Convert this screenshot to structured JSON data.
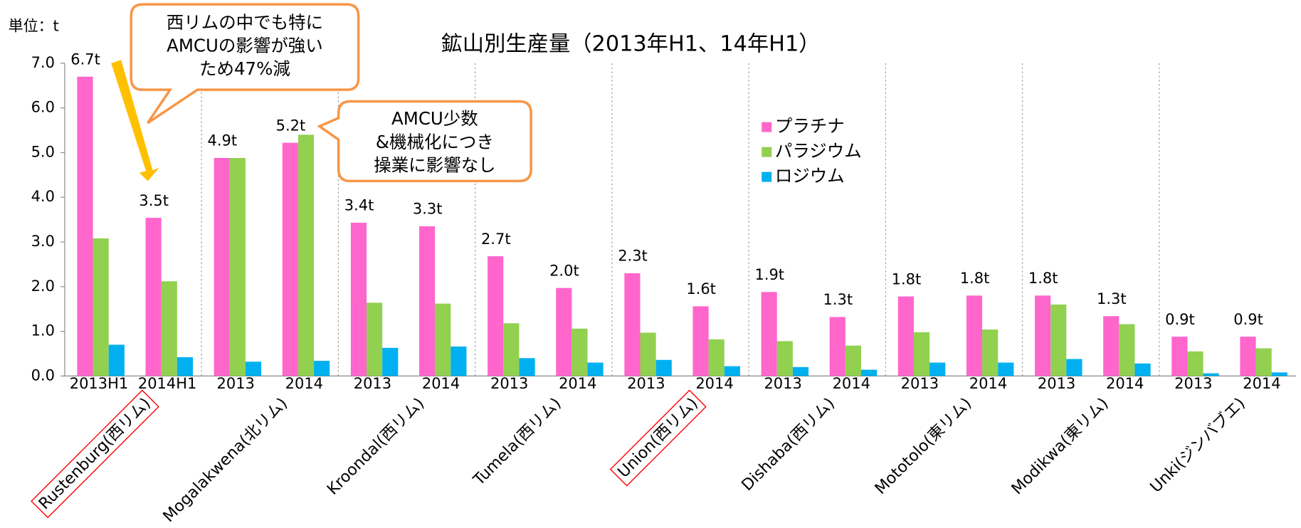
{
  "chart_data": {
    "type": "bar",
    "title": "鉱山別生産量（2013年H1、14年H1）",
    "unit_label": "単位：t",
    "categories": [
      "2013H1",
      "2014H1",
      "2013",
      "2014",
      "2013",
      "2014",
      "2013",
      "2014",
      "2013",
      "2014",
      "2013",
      "2014",
      "2013",
      "2014",
      "2013",
      "2014",
      "2013",
      "2014"
    ],
    "groups": [
      "Rustenburg(西リム)",
      "Mogalakwena(北リム)",
      "Kroondal(西リム)",
      "Tumela(西リム)",
      "Union(西リム)",
      "Dishaba(西リム)",
      "Mototolo(東リム)",
      "Modikwa(東リム)",
      "Unki(ジンバブエ)"
    ],
    "highlighted_groups": [
      0,
      4
    ],
    "series": [
      {
        "name": "プラチナ",
        "color": "#ff66cc",
        "values": [
          6.7,
          3.54,
          4.88,
          5.22,
          3.43,
          3.35,
          2.68,
          1.97,
          2.3,
          1.56,
          1.88,
          1.32,
          1.78,
          1.8,
          1.8,
          1.34,
          0.88,
          0.88
        ],
        "value_labels": [
          "6.7t",
          "3.5t",
          "4.9t",
          "5.2t",
          "3.4t",
          "3.3t",
          "2.7t",
          "2.0t",
          "2.3t",
          "1.6t",
          "1.9t",
          "1.3t",
          "1.8t",
          "1.8t",
          "1.8t",
          "1.3t",
          "0.9t",
          "0.9t"
        ]
      },
      {
        "name": "パラジウム",
        "color": "#92d050",
        "values": [
          3.08,
          2.12,
          4.88,
          5.4,
          1.64,
          1.62,
          1.18,
          1.06,
          0.97,
          0.82,
          0.78,
          0.68,
          0.98,
          1.04,
          1.6,
          1.16,
          0.55,
          0.62
        ]
      },
      {
        "name": "ロジウム",
        "color": "#00b0f0",
        "values": [
          0.7,
          0.42,
          0.32,
          0.34,
          0.63,
          0.66,
          0.4,
          0.3,
          0.36,
          0.22,
          0.2,
          0.14,
          0.3,
          0.3,
          0.38,
          0.28,
          0.06,
          0.08
        ]
      }
    ],
    "ylim": [
      0,
      7
    ],
    "yticks": [
      {
        "value": 0,
        "label": "0.0"
      },
      {
        "value": 1,
        "label": "1.0"
      },
      {
        "value": 2,
        "label": "2.0"
      },
      {
        "value": 3,
        "label": "3.0"
      },
      {
        "value": 4,
        "label": "4.0"
      },
      {
        "value": 5,
        "label": "5.0"
      },
      {
        "value": 6,
        "label": "6.0"
      },
      {
        "value": 7,
        "label": "7.0"
      }
    ],
    "annotations": [
      [
        "西リムの中でも特に",
        "AMCUの影響が強い",
        "ため47%減"
      ],
      [
        "AMCU少数",
        "&機械化につき",
        "操業に影響なし"
      ]
    ]
  }
}
